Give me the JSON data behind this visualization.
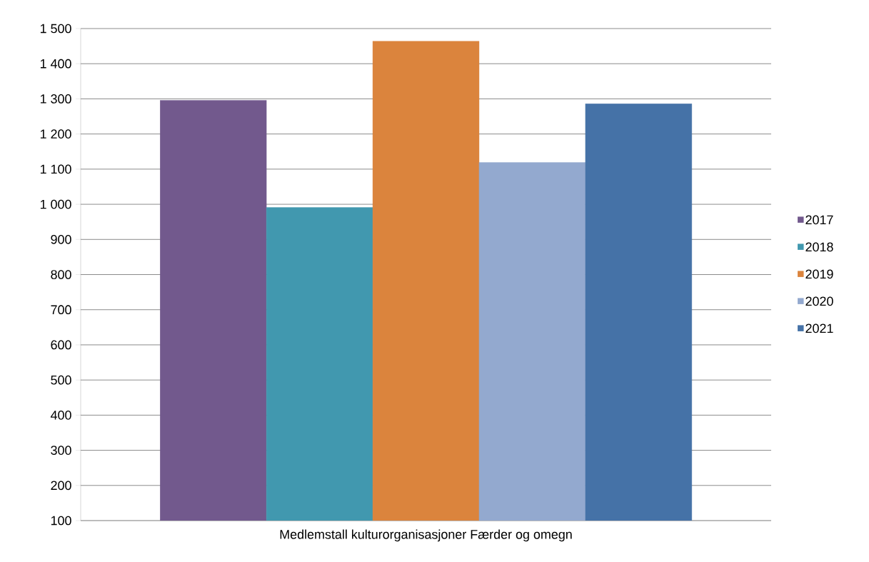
{
  "chart_data": {
    "type": "bar",
    "categories": [
      "Medlemstall kulturorganisasjoner Færder og omegn"
    ],
    "series": [
      {
        "name": "2017",
        "color": "#72598d",
        "values": [
          1296
        ]
      },
      {
        "name": "2018",
        "color": "#4198af",
        "values": [
          991
        ]
      },
      {
        "name": "2019",
        "color": "#db843d",
        "values": [
          1464
        ]
      },
      {
        "name": "2020",
        "color": "#93a9cf",
        "values": [
          1119
        ]
      },
      {
        "name": "2021",
        "color": "#4572a7",
        "values": [
          1286
        ]
      }
    ],
    "ylim": [
      100,
      1500
    ],
    "yticks": [
      {
        "value": 100,
        "label": "100"
      },
      {
        "value": 200,
        "label": "200"
      },
      {
        "value": 300,
        "label": "300"
      },
      {
        "value": 400,
        "label": "400"
      },
      {
        "value": 500,
        "label": "500"
      },
      {
        "value": 600,
        "label": "600"
      },
      {
        "value": 700,
        "label": "700"
      },
      {
        "value": 800,
        "label": "800"
      },
      {
        "value": 900,
        "label": "900"
      },
      {
        "value": 1000,
        "label": "1 000"
      },
      {
        "value": 1100,
        "label": "1 100"
      },
      {
        "value": 1200,
        "label": "1 200"
      },
      {
        "value": 1300,
        "label": "1 300"
      },
      {
        "value": 1400,
        "label": "1 400"
      },
      {
        "value": 1500,
        "label": "1 500"
      }
    ],
    "grid": "y",
    "legend": "right"
  }
}
